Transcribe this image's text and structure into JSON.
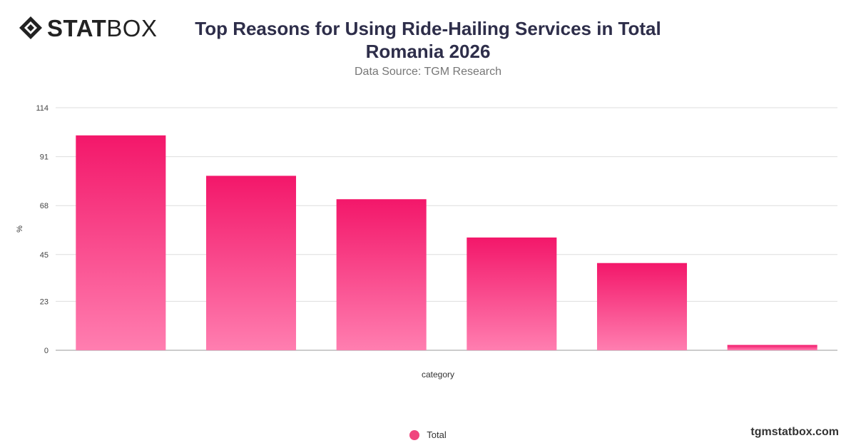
{
  "header": {
    "logo_bold": "STAT",
    "logo_light": "BOX",
    "title_line1": "Top Reasons for Using Ride-Hailing Services in Total",
    "title_line2": "Romania 2026",
    "subtitle": "Data Source: TGM Research"
  },
  "footer": {
    "site": "tgmstatbox.com"
  },
  "colors": {
    "bar_top": "#f3176a",
    "bar_bottom": "#ff7eb0",
    "grid": "#dddddd"
  },
  "chart_data": {
    "type": "bar",
    "title": "Top Reasons for Using Ride-Hailing Services in Total Romania 2026",
    "subtitle": "Data Source: TGM Research",
    "xlabel": "category",
    "ylabel": "%",
    "ylim": [
      0,
      114
    ],
    "yticks": [
      0,
      23,
      45,
      68,
      91,
      114
    ],
    "categories": [
      "",
      "",
      "",
      "",
      "",
      ""
    ],
    "series": [
      {
        "name": "Total",
        "values": [
          101,
          82,
          71,
          53,
          41,
          2.5
        ]
      }
    ],
    "grid": true,
    "legend_position": "bottom-center"
  }
}
